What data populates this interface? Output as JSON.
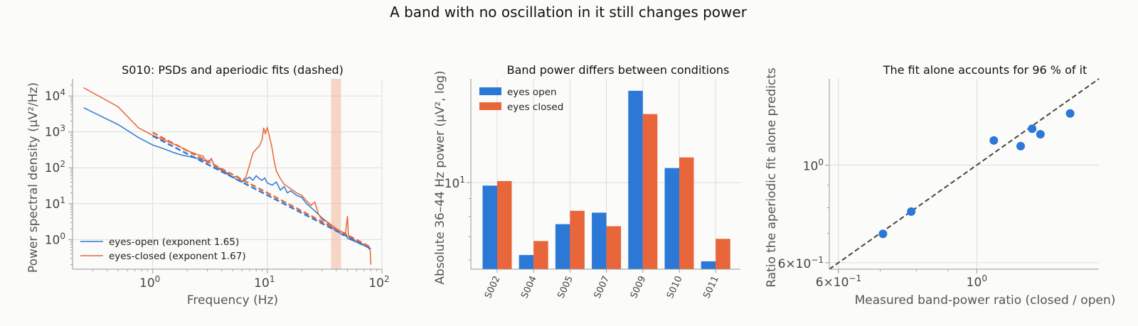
{
  "suptitle": "A band with no oscillation in it still changes power",
  "colors": {
    "open": "#2b78d6",
    "closed": "#e8663a",
    "band": "#f2b69e",
    "identity": "#444444"
  },
  "chart_data": [
    {
      "type": "line",
      "title": "S010: PSDs and aperiodic fits (dashed)",
      "xlabel": "Frequency (Hz)",
      "ylabel": "Power spectral density (µV²/Hz)",
      "xscale": "log",
      "yscale": "log",
      "xlim": [
        0.2,
        100
      ],
      "ylim": [
        0.15,
        30000
      ],
      "xticks": [
        1,
        10,
        100
      ],
      "xtick_labels": [
        {
          "b": "10",
          "e": "0"
        },
        {
          "b": "10",
          "e": "1"
        },
        {
          "b": "10",
          "e": "2"
        }
      ],
      "yticks": [
        1,
        10,
        100,
        1000,
        10000
      ],
      "ytick_labels": [
        {
          "b": "10",
          "e": "0"
        },
        {
          "b": "10",
          "e": "1"
        },
        {
          "b": "10",
          "e": "2"
        },
        {
          "b": "10",
          "e": "3"
        },
        {
          "b": "10",
          "e": "4"
        }
      ],
      "band": [
        36,
        44
      ],
      "legend_position": "lower-left",
      "series": [
        {
          "name": "eyes-open (exponent 1.65)",
          "color_key": "open",
          "points": [
            [
              0.25,
              4700
            ],
            [
              0.5,
              1600
            ],
            [
              0.75,
              700
            ],
            [
              1.0,
              430
            ],
            [
              1.25,
              340
            ],
            [
              1.5,
              270
            ],
            [
              1.75,
              230
            ],
            [
              2.0,
              210
            ],
            [
              2.5,
              180
            ],
            [
              3.0,
              150
            ],
            [
              3.25,
              170
            ],
            [
              3.5,
              110
            ],
            [
              4.0,
              90
            ],
            [
              4.5,
              70
            ],
            [
              5.0,
              55
            ],
            [
              5.5,
              58
            ],
            [
              6.0,
              40
            ],
            [
              6.5,
              48
            ],
            [
              7.0,
              55
            ],
            [
              7.5,
              45
            ],
            [
              8.0,
              60
            ],
            [
              8.5,
              50
            ],
            [
              9.0,
              45
            ],
            [
              9.5,
              52
            ],
            [
              10.0,
              38
            ],
            [
              11.0,
              33
            ],
            [
              12.0,
              40
            ],
            [
              13.0,
              24
            ],
            [
              14.0,
              30
            ],
            [
              15.0,
              20
            ],
            [
              16.0,
              23
            ],
            [
              18.0,
              17
            ],
            [
              20.0,
              15
            ],
            [
              22.0,
              10
            ],
            [
              25.0,
              7
            ],
            [
              28.0,
              5
            ],
            [
              30.0,
              4
            ],
            [
              33.0,
              3.2
            ],
            [
              36.0,
              2.3
            ],
            [
              38.0,
              2.0
            ],
            [
              40.0,
              1.7
            ],
            [
              42.0,
              1.6
            ],
            [
              44.0,
              1.45
            ],
            [
              46.0,
              1.3
            ],
            [
              48.0,
              1.6
            ],
            [
              50.0,
              1.1
            ],
            [
              55.0,
              0.95
            ],
            [
              60.0,
              0.85
            ],
            [
              65.0,
              0.75
            ],
            [
              70.0,
              0.68
            ],
            [
              75.0,
              0.62
            ],
            [
              80.0,
              0.55
            ]
          ],
          "fit": [
            [
              1.0,
              770
            ],
            [
              80.0,
              0.56
            ]
          ]
        },
        {
          "name": "eyes-closed (exponent 1.67)",
          "color_key": "closed",
          "points": [
            [
              0.25,
              17000
            ],
            [
              0.5,
              5000
            ],
            [
              0.75,
              1300
            ],
            [
              1.0,
              800
            ],
            [
              1.25,
              600
            ],
            [
              1.5,
              470
            ],
            [
              1.75,
              380
            ],
            [
              2.0,
              300
            ],
            [
              2.5,
              230
            ],
            [
              2.75,
              210
            ],
            [
              3.0,
              130
            ],
            [
              3.25,
              180
            ],
            [
              3.5,
              100
            ],
            [
              4.0,
              85
            ],
            [
              4.5,
              65
            ],
            [
              5.0,
              55
            ],
            [
              5.5,
              45
            ],
            [
              6.0,
              42
            ],
            [
              6.5,
              55
            ],
            [
              7.0,
              120
            ],
            [
              7.5,
              260
            ],
            [
              8.0,
              330
            ],
            [
              8.5,
              400
            ],
            [
              9.0,
              600
            ],
            [
              9.3,
              1300
            ],
            [
              9.6,
              900
            ],
            [
              10.0,
              1300
            ],
            [
              10.5,
              700
            ],
            [
              11.0,
              350
            ],
            [
              11.5,
              150
            ],
            [
              12.0,
              80
            ],
            [
              13.0,
              50
            ],
            [
              14.0,
              35
            ],
            [
              15.0,
              30
            ],
            [
              16.0,
              26
            ],
            [
              18.0,
              20
            ],
            [
              20.0,
              17
            ],
            [
              22.0,
              12
            ],
            [
              24.0,
              9
            ],
            [
              26.0,
              11
            ],
            [
              28.0,
              5
            ],
            [
              30.0,
              3.6
            ],
            [
              33.0,
              3.2
            ],
            [
              36.0,
              2.6
            ],
            [
              38.0,
              2.3
            ],
            [
              40.0,
              2.0
            ],
            [
              42.0,
              1.8
            ],
            [
              44.0,
              1.7
            ],
            [
              46.0,
              1.5
            ],
            [
              48.0,
              1.4
            ],
            [
              50.0,
              4.5
            ],
            [
              51.0,
              1.2
            ],
            [
              55.0,
              1.0
            ],
            [
              60.0,
              0.9
            ],
            [
              65.0,
              0.8
            ],
            [
              70.0,
              0.72
            ],
            [
              75.0,
              0.62
            ],
            [
              79.0,
              0.5
            ],
            [
              80.0,
              0.2
            ]
          ],
          "fit": [
            [
              1.0,
              960
            ],
            [
              80.0,
              0.61
            ]
          ]
        }
      ]
    },
    {
      "type": "bar",
      "title": "Band power differs between conditions",
      "xlabel": "",
      "ylabel": "Absolute 36–44 Hz power (µV², log)",
      "yscale": "log",
      "ylim": [
        5.65,
        19.8
      ],
      "yticks": [
        10
      ],
      "ytick_labels": [
        {
          "b": "10",
          "e": "1"
        }
      ],
      "categories": [
        "S002",
        "S004",
        "S005",
        "S007",
        "S009",
        "S010",
        "S011"
      ],
      "legend_position": "top-left",
      "series": [
        {
          "name": "eyes open",
          "color_key": "open",
          "values": [
            9.8,
            6.2,
            7.6,
            8.2,
            18.3,
            11.0,
            5.95
          ]
        },
        {
          "name": "eyes closed",
          "color_key": "closed",
          "values": [
            10.1,
            6.8,
            8.3,
            7.5,
            15.7,
            11.8,
            6.9
          ]
        }
      ]
    },
    {
      "type": "scatter",
      "title": "The fit alone accounts for 96 % of it",
      "xlabel": "Measured band-power ratio (closed / open)",
      "ylabel": "Ratio the aperiodic fit alone predicts",
      "xscale": "log",
      "yscale": "log",
      "xlim": [
        0.58,
        1.57
      ],
      "ylim": [
        0.58,
        1.57
      ],
      "xticks": [
        0.6,
        1.0
      ],
      "xtick_labels": [
        {
          "b": "6×10",
          "e": "−1"
        },
        {
          "b": "10",
          "e": "0"
        }
      ],
      "yticks": [
        0.6,
        1.0
      ],
      "ytick_labels": [
        {
          "b": "6×10",
          "e": "−1"
        },
        {
          "b": "10",
          "e": "0"
        }
      ],
      "identity_line": true,
      "color_key": "open",
      "points": [
        [
          0.707,
          0.698
        ],
        [
          0.785,
          0.784
        ],
        [
          1.065,
          1.137
        ],
        [
          1.176,
          1.104
        ],
        [
          1.227,
          1.209
        ],
        [
          1.265,
          1.175
        ],
        [
          1.412,
          1.31
        ]
      ]
    }
  ]
}
